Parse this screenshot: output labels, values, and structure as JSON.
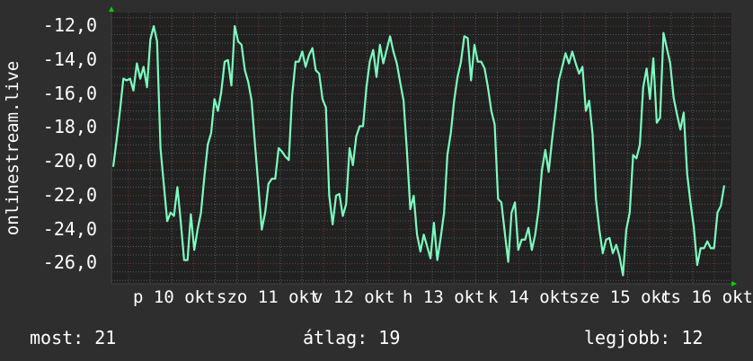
{
  "colors": {
    "background": "#2e2e2e",
    "plot_background": "#212121",
    "line": "#7dfbbf",
    "grid_minor": "#5a5a5a",
    "grid_major": "#7a3434",
    "axis_arrow": "#00d000"
  },
  "chart_data": {
    "type": "line",
    "ylabel": "onlinestream.live",
    "ylim": [
      -27.2,
      -11.2
    ],
    "yticks": [
      "-12,0",
      "-14,0",
      "-16,0",
      "-18,0",
      "-20,0",
      "-22,0",
      "-24,0",
      "-26,0"
    ],
    "ytick_values": [
      -12,
      -14,
      -16,
      -18,
      -20,
      -22,
      -24,
      -26
    ],
    "xtick_labels": [
      "p 10 okt",
      "szo 11 okt",
      "v 12 okt",
      "h 13 okt",
      "k 14 okt",
      "sze 15 okt",
      "cs 16 okt"
    ],
    "grid": true,
    "values": [
      -20.3,
      -18.7,
      -17,
      -15.1,
      -15.2,
      -15.1,
      -15.8,
      -14.2,
      -15.1,
      -14.4,
      -15.6,
      -12.8,
      -12,
      -12.9,
      -19.2,
      -21.4,
      -23.5,
      -23,
      -23.2,
      -21.5,
      -23.5,
      -25.8,
      -25.8,
      -23.1,
      -25.2,
      -24,
      -23,
      -20.9,
      -19,
      -18.3,
      -16.3,
      -17,
      -15.9,
      -14.1,
      -14,
      -15.5,
      -12,
      -12.9,
      -13.1,
      -14.6,
      -15.3,
      -16.4,
      -19,
      -21.4,
      -24,
      -23,
      -21.3,
      -21,
      -21,
      -19.2,
      -19.4,
      -19.7,
      -19.9,
      -16.1,
      -14.1,
      -14.1,
      -13.5,
      -14.4,
      -13.7,
      -13.3,
      -14.6,
      -14.8,
      -16.3,
      -16.8,
      -22,
      -23.7,
      -22,
      -21.9,
      -23.2,
      -22.5,
      -19.2,
      -20.2,
      -18.5,
      -17.9,
      -17.9,
      -15.6,
      -14.1,
      -13.4,
      -15,
      -13.1,
      -14.2,
      -13.4,
      -12.6,
      -13.5,
      -14.2,
      -15.3,
      -16.4,
      -19.4,
      -22.8,
      -22,
      -24.3,
      -25.3,
      -24.3,
      -25,
      -25.7,
      -23.6,
      -25.8,
      -24.5,
      -23,
      -19.6,
      -18.3,
      -16.4,
      -15,
      -14.1,
      -12.6,
      -12.7,
      -15.2,
      -13.1,
      -14.1,
      -14.1,
      -14.5,
      -15.6,
      -17,
      -17.8,
      -22.2,
      -22.4,
      -24.2,
      -25.9,
      -23,
      -22.4,
      -25.2,
      -24.6,
      -24.6,
      -23.9,
      -25.2,
      -24.3,
      -22.8,
      -20.5,
      -19.3,
      -20.6,
      -18.7,
      -17,
      -15.2,
      -14.4,
      -13.6,
      -14.2,
      -13.5,
      -14.2,
      -14.8,
      -14.4,
      -17,
      -16.4,
      -18.4,
      -22.2,
      -24,
      -25.4,
      -24.6,
      -24.5,
      -25.4,
      -24.9,
      -25.6,
      -26.7,
      -24,
      -23,
      -19.6,
      -19.8,
      -19,
      -15.6,
      -14.5,
      -16.3,
      -13.9,
      -17.7,
      -17.4,
      -12.4,
      -13.3,
      -14.2,
      -16.2,
      -17.2,
      -18.1,
      -17.1,
      -20.7,
      -22.4,
      -23.9,
      -26.1,
      -25.1,
      -25.1,
      -24.7,
      -25.1,
      -25.1,
      -23,
      -22.6,
      -21.4
    ]
  },
  "footer": {
    "current": "most: 21",
    "average": "átlag: 19",
    "max": "legjobb: 12"
  }
}
